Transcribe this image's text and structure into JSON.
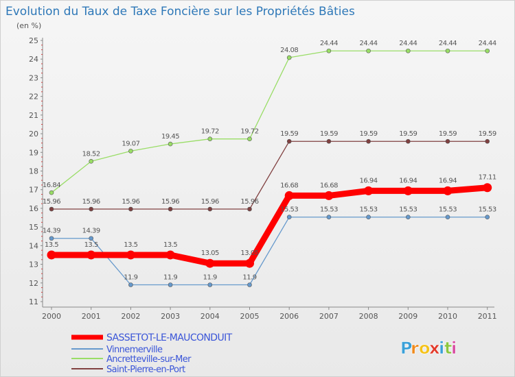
{
  "chart_data": {
    "type": "line",
    "title": "Evolution du Taux de Taxe Foncière sur les Propriétés Bâties",
    "subtitle": "(en %)",
    "ylim": [
      11,
      25
    ],
    "y_ticks": [
      11,
      12,
      13,
      14,
      15,
      16,
      17,
      18,
      19,
      20,
      21,
      22,
      23,
      24,
      25
    ],
    "x": [
      "2000",
      "2001",
      "2002",
      "2003",
      "2004",
      "2005",
      "2006",
      "2007",
      "2008",
      "2009",
      "2010",
      "2011"
    ],
    "grid": false,
    "legend_position": "bottom-left",
    "series": [
      {
        "name": "SASSETOT-LE-MAUCONDUIT",
        "color": "#ff0000",
        "values": [
          13.5,
          13.5,
          13.5,
          13.5,
          13.05,
          13.05,
          16.68,
          16.68,
          16.94,
          16.94,
          16.94,
          17.11
        ],
        "labels": [
          "13.5",
          "13.5",
          "13.5",
          "13.5",
          "13.05",
          "13.05",
          "16.68",
          "16.68",
          "16.94",
          "16.94",
          "16.94",
          "17.11"
        ]
      },
      {
        "name": "Vinnemerville",
        "color": "#6699cc",
        "values": [
          14.39,
          14.39,
          11.9,
          11.9,
          11.9,
          11.9,
          15.53,
          15.53,
          15.53,
          15.53,
          15.53,
          15.53
        ],
        "labels": [
          "14.39",
          "14.39",
          "11.9",
          "11.9",
          "11.9",
          "11.9",
          "15.53",
          "15.53",
          "15.53",
          "15.53",
          "15.53",
          "15.53"
        ]
      },
      {
        "name": "Ancretteville-sur-Mer",
        "color": "#99dd66",
        "values": [
          16.84,
          18.52,
          19.07,
          19.45,
          19.72,
          19.72,
          24.08,
          24.44,
          24.44,
          24.44,
          24.44,
          24.44
        ],
        "labels": [
          "16.84",
          "18.52",
          "19.07",
          "19.45",
          "19.72",
          "19.72",
          "24.08",
          "24.44",
          "24.44",
          "24.44",
          "24.44",
          "24.44"
        ]
      },
      {
        "name": "Saint-Pierre-en-Port",
        "color": "#804040",
        "values": [
          15.96,
          15.96,
          15.96,
          15.96,
          15.96,
          15.96,
          19.59,
          19.59,
          19.59,
          19.59,
          19.59,
          19.59
        ],
        "labels": [
          "15.96",
          "15.96",
          "15.96",
          "15.96",
          "15.96",
          "15.96",
          "19.59",
          "19.59",
          "19.59",
          "19.59",
          "19.59",
          "19.59"
        ]
      }
    ]
  },
  "logo": {
    "text": "Proxiti",
    "colors": [
      "#3aa0d8",
      "#f08a1c",
      "#f4c21a",
      "#e23a2a",
      "#3aa0d8",
      "#8cc63f",
      "#d84ba0"
    ]
  },
  "colors": {
    "title": "#2e78b8",
    "axis": "#555555",
    "legend_text": "#3a55d8"
  }
}
